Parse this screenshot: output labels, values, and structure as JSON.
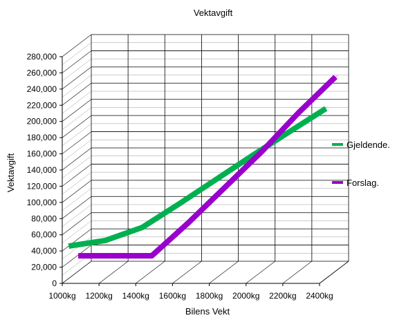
{
  "chart_data": {
    "type": "line",
    "title": "Vektavgift",
    "xlabel": "Bilens Vekt",
    "ylabel": "Vektavgift",
    "categories": [
      "1000kg",
      "1200kg",
      "1400kg",
      "1600kg",
      "1800kg",
      "2000kg",
      "2200kg",
      "2400kg"
    ],
    "y_ticks": [
      "0",
      "20,000",
      "40,000",
      "60,000",
      "80,000",
      "100,000",
      "120,000",
      "140,000",
      "160,000",
      "180,000",
      "200,000",
      "220,000",
      "240,000",
      "260,000",
      "280,000"
    ],
    "ylim": [
      0,
      280000
    ],
    "grid": true,
    "legend_position": "right",
    "series": [
      {
        "name": "Gjeldende.",
        "color": "#00b050",
        "x": [
          1000,
          1200,
          1400,
          1600,
          1800,
          2000,
          2200,
          2400
        ],
        "values": [
          40000,
          47000,
          63000,
          92000,
          122000,
          152000,
          181000,
          210000
        ]
      },
      {
        "name": "Forslag.",
        "color": "#9900cc",
        "x": [
          1000,
          1200,
          1400,
          1600,
          1800,
          2000,
          2200,
          2400
        ],
        "values": [
          19000,
          19000,
          19000,
          60000,
          104000,
          148000,
          196000,
          240000
        ]
      }
    ]
  }
}
